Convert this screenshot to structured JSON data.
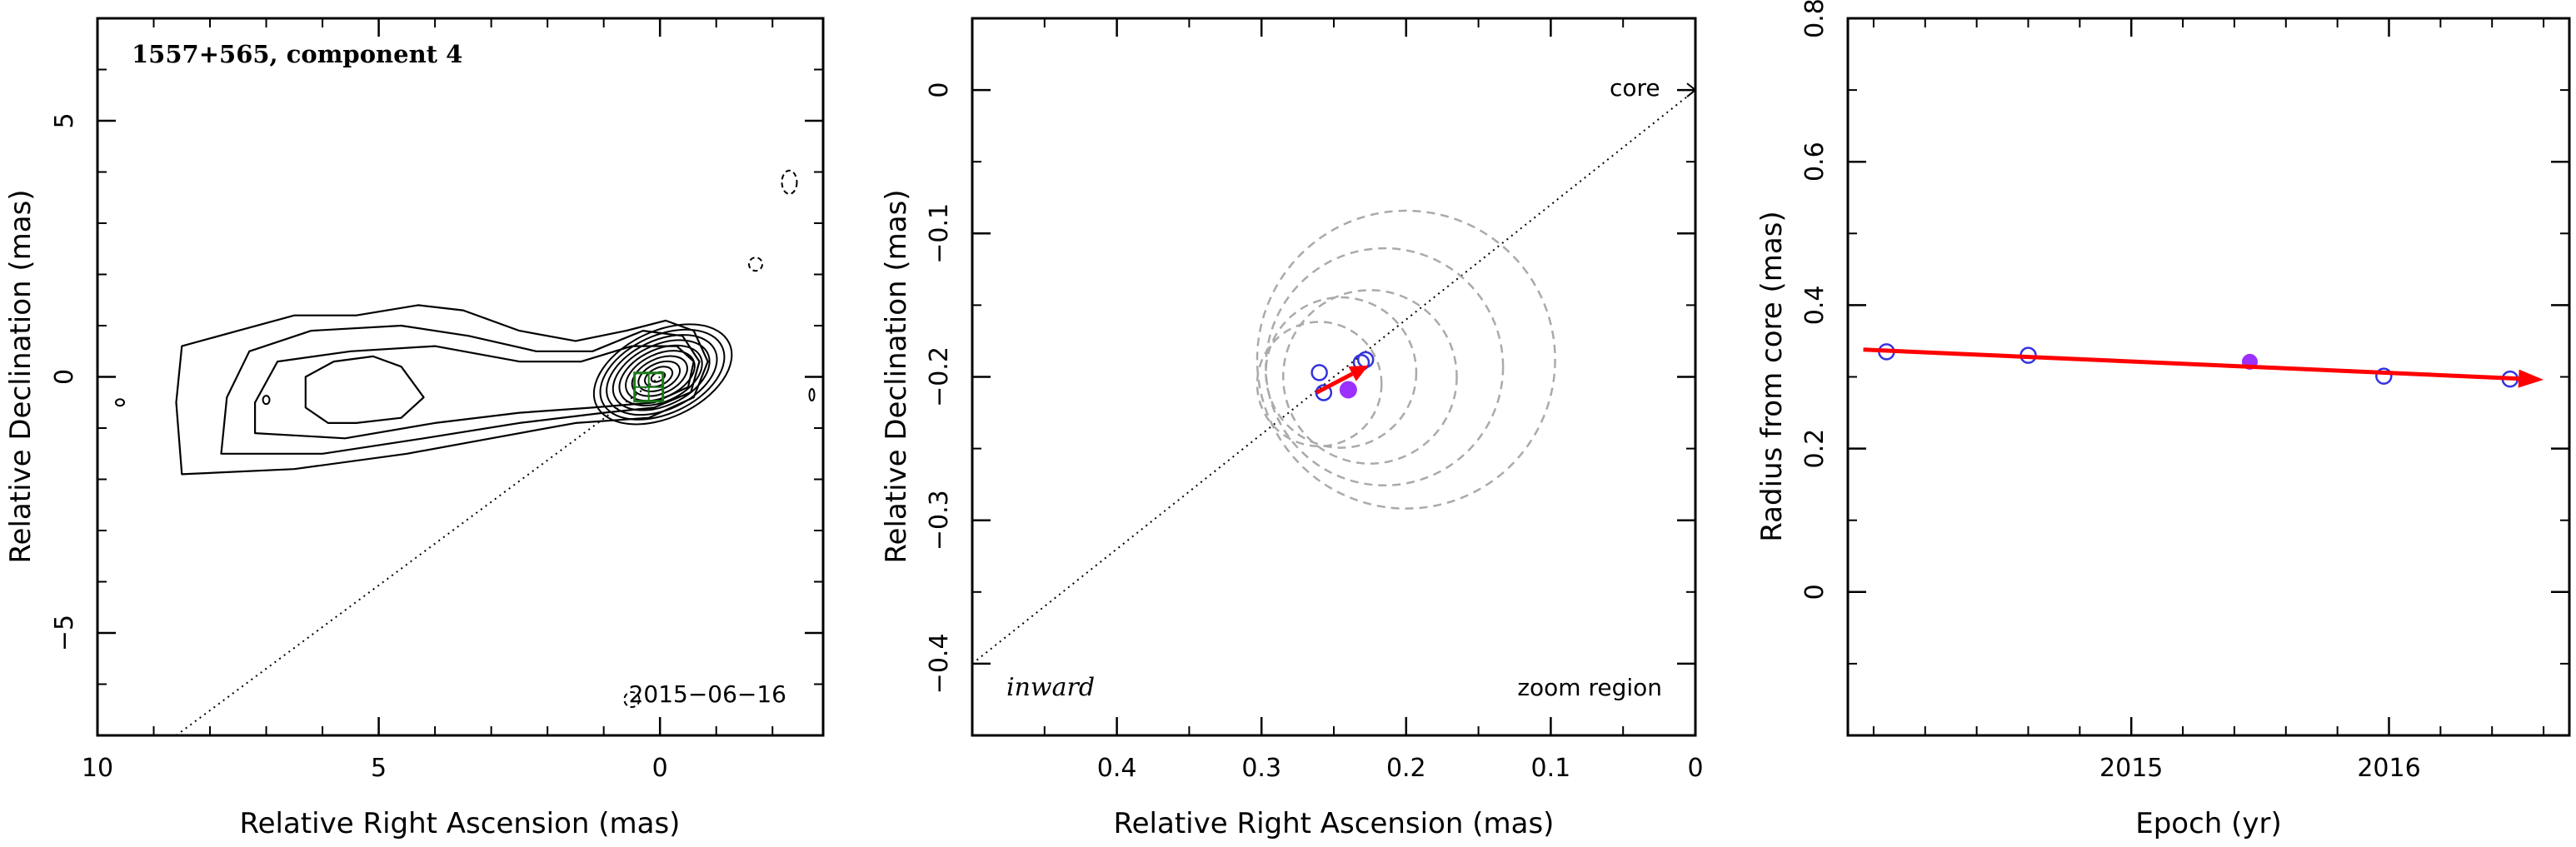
{
  "chart_data": [
    {
      "type": "contour",
      "title": "1557+565, component 4",
      "xlabel": "Relative Right Ascension (mas)",
      "ylabel": "Relative Declination (mas)",
      "xlim": [
        10,
        -2.9
      ],
      "ylim": [
        -7,
        7
      ],
      "xticks": [
        10,
        5,
        0
      ],
      "yticks": [
        -5,
        0,
        5
      ],
      "xtick_labels": [
        "10",
        "5",
        "0"
      ],
      "ytick_labels": [
        "−5",
        "0",
        "5"
      ],
      "epoch_label": "2015−06−16",
      "contour_levels": 10,
      "contour_color": "#000000",
      "component_marker_color": "#1a7a1a",
      "direction_line": {
        "x": [
          8.6,
          0.0
        ],
        "y": [
          -7.0,
          0.0
        ]
      }
    },
    {
      "type": "scatter",
      "xlabel": "Relative Right Ascension (mas)",
      "ylabel": "Relative Declination (mas)",
      "xlim": [
        0.5,
        0.0
      ],
      "ylim": [
        -0.45,
        0.05
      ],
      "xticks": [
        0.4,
        0.3,
        0.2,
        0.1,
        0
      ],
      "yticks": [
        0,
        -0.1,
        -0.2,
        -0.3,
        -0.4
      ],
      "xtick_labels": [
        "0.4",
        "0.3",
        "0.2",
        "0.1",
        "0"
      ],
      "ytick_labels": [
        "0",
        "−0.1",
        "−0.2",
        "−0.3",
        "−0.4"
      ],
      "annotations": {
        "core": "core",
        "inward": "inward",
        "zoom": "zoom region"
      },
      "points_open": [
        {
          "x": 0.26,
          "y": -0.197
        },
        {
          "x": 0.257,
          "y": -0.211
        },
        {
          "x": 0.231,
          "y": -0.19
        },
        {
          "x": 0.228,
          "y": -0.188
        }
      ],
      "point_filled": {
        "x": 0.24,
        "y": -0.209
      },
      "circles": [
        {
          "x": 0.2,
          "y": -0.188,
          "r": 0.103
        },
        {
          "x": 0.215,
          "y": -0.193,
          "r": 0.082
        },
        {
          "x": 0.225,
          "y": -0.2,
          "r": 0.06
        },
        {
          "x": 0.245,
          "y": -0.197,
          "r": 0.052
        },
        {
          "x": 0.26,
          "y": -0.205,
          "r": 0.043
        }
      ],
      "arrow": {
        "x": [
          0.262,
          0.226
        ],
        "y": [
          -0.211,
          -0.192
        ]
      },
      "direction_line": {
        "x": [
          0.5,
          0.0
        ],
        "y": [
          -0.4,
          0.0
        ]
      },
      "colors": {
        "points": "#3333dd",
        "filled": "#9b30ff",
        "arrow": "#ff0000",
        "circles": "#aaaaaa"
      }
    },
    {
      "type": "scatter",
      "xlabel": "Epoch (yr)",
      "ylabel": "Radius from core (mas)",
      "xlim": [
        2013.9,
        2016.7
      ],
      "ylim": [
        -0.2,
        0.8
      ],
      "xticks": [
        2015,
        2016
      ],
      "yticks": [
        0,
        0.2,
        0.4,
        0.6,
        0.8
      ],
      "xtick_labels": [
        "2015",
        "2016"
      ],
      "ytick_labels": [
        "0",
        "0.2",
        "0.4",
        "0.6",
        "0.8"
      ],
      "points_open": [
        {
          "x": 2014.05,
          "y": 0.335
        },
        {
          "x": 2014.6,
          "y": 0.33
        },
        {
          "x": 2015.98,
          "y": 0.301
        },
        {
          "x": 2016.47,
          "y": 0.297
        }
      ],
      "point_filled": {
        "x": 2015.46,
        "y": 0.321
      },
      "fit_arrow": {
        "x": [
          2013.96,
          2016.6
        ],
        "y": [
          0.338,
          0.296
        ]
      },
      "colors": {
        "points": "#3333dd",
        "filled": "#9b30ff",
        "arrow": "#ff0000"
      }
    }
  ]
}
